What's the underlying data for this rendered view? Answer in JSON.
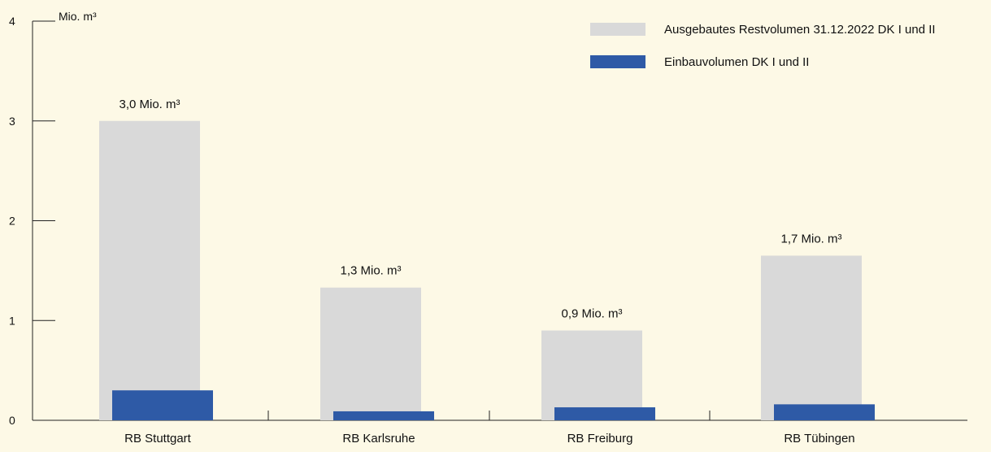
{
  "chart_data": {
    "type": "bar",
    "unit_label": "Mio. m³",
    "categories": [
      "RB Stuttgart",
      "RB Karlsruhe",
      "RB Freiburg",
      "RB Tübingen"
    ],
    "ylim": [
      0,
      4
    ],
    "yticks": [
      0,
      1,
      2,
      3,
      4
    ],
    "ytick_labels": [
      "0",
      "1",
      "2",
      "3",
      "4"
    ],
    "legend_position": "top-right",
    "grid": false,
    "series": [
      {
        "name": "Ausgebautes Restvolumen 31.12.2022 DK I und II",
        "color": "#d9d9d9",
        "values": [
          3.0,
          1.33,
          0.9,
          1.65
        ],
        "data_labels": [
          "3,0 Mio. m³",
          "1,3 Mio. m³",
          "0,9 Mio. m³",
          "1,7 Mio. m³"
        ]
      },
      {
        "name": "Einbauvolumen DK I und II",
        "color": "#2e5aa6",
        "values": [
          0.3,
          0.09,
          0.13,
          0.16
        ]
      }
    ]
  }
}
